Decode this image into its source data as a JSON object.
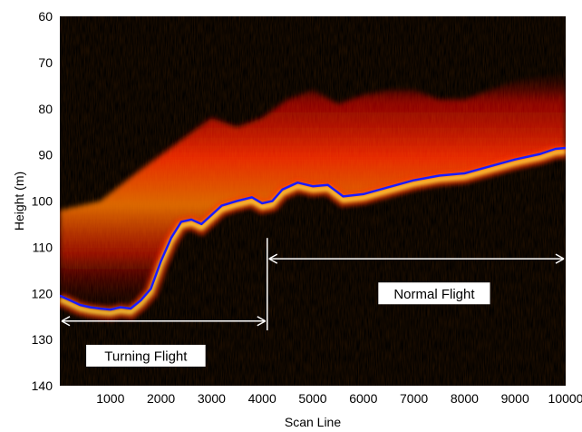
{
  "chart_data": {
    "type": "heatmap",
    "xlabel": "Scan Line",
    "ylabel": "Height (m)",
    "xlim": [
      0,
      10000
    ],
    "ylim": [
      60,
      140
    ],
    "y_inverted": true,
    "xticks": [
      1000,
      2000,
      3000,
      4000,
      5000,
      6000,
      7000,
      8000,
      9000,
      10000
    ],
    "yticks": [
      60,
      70,
      80,
      90,
      100,
      110,
      120,
      130,
      140
    ],
    "colormap": "hot",
    "colors": {
      "background": "#000000",
      "trace_line": "#1a1aff",
      "annotation": "#ffffff",
      "label_box": "#ffffff",
      "label_text": "#000000"
    },
    "series": [
      {
        "values": [
          {
            "x": 0,
            "y": 120.5
          },
          {
            "x": 200,
            "y": 121.5
          },
          {
            "x": 400,
            "y": 122.5
          },
          {
            "x": 600,
            "y": 123.0
          },
          {
            "x": 800,
            "y": 123.3
          },
          {
            "x": 1000,
            "y": 123.5
          },
          {
            "x": 1200,
            "y": 123.0
          },
          {
            "x": 1400,
            "y": 123.3
          },
          {
            "x": 1600,
            "y": 121.5
          },
          {
            "x": 1800,
            "y": 119.0
          },
          {
            "x": 2000,
            "y": 113.0
          },
          {
            "x": 2200,
            "y": 108.0
          },
          {
            "x": 2400,
            "y": 104.5
          },
          {
            "x": 2600,
            "y": 104.0
          },
          {
            "x": 2800,
            "y": 105.0
          },
          {
            "x": 3000,
            "y": 103.0
          },
          {
            "x": 3200,
            "y": 101.0
          },
          {
            "x": 3500,
            "y": 100.0
          },
          {
            "x": 3800,
            "y": 99.2
          },
          {
            "x": 4000,
            "y": 100.5
          },
          {
            "x": 4200,
            "y": 100.0
          },
          {
            "x": 4400,
            "y": 97.5
          },
          {
            "x": 4700,
            "y": 96.0
          },
          {
            "x": 5000,
            "y": 96.8
          },
          {
            "x": 5300,
            "y": 96.5
          },
          {
            "x": 5600,
            "y": 99.0
          },
          {
            "x": 6000,
            "y": 98.5
          },
          {
            "x": 6500,
            "y": 97.0
          },
          {
            "x": 7000,
            "y": 95.5
          },
          {
            "x": 7500,
            "y": 94.5
          },
          {
            "x": 8000,
            "y": 94.0
          },
          {
            "x": 8500,
            "y": 92.5
          },
          {
            "x": 9000,
            "y": 91.0
          },
          {
            "x": 9500,
            "y": 89.8
          },
          {
            "x": 9800,
            "y": 88.7
          },
          {
            "x": 10000,
            "y": 88.5
          }
        ]
      }
    ],
    "clutter_band_top": [
      {
        "x": 0,
        "y": 102
      },
      {
        "x": 800,
        "y": 100
      },
      {
        "x": 1500,
        "y": 94
      },
      {
        "x": 2000,
        "y": 90
      },
      {
        "x": 2500,
        "y": 86
      },
      {
        "x": 3000,
        "y": 82
      },
      {
        "x": 3500,
        "y": 84
      },
      {
        "x": 4000,
        "y": 82
      },
      {
        "x": 4500,
        "y": 78
      },
      {
        "x": 5000,
        "y": 76
      },
      {
        "x": 5500,
        "y": 79
      },
      {
        "x": 6000,
        "y": 77
      },
      {
        "x": 6500,
        "y": 76
      },
      {
        "x": 7000,
        "y": 76
      },
      {
        "x": 7500,
        "y": 78
      },
      {
        "x": 8000,
        "y": 78
      },
      {
        "x": 8500,
        "y": 76
      },
      {
        "x": 9000,
        "y": 74
      },
      {
        "x": 9500,
        "y": 73
      },
      {
        "x": 10000,
        "y": 72
      }
    ],
    "annotations": [
      {
        "label": "Turning Flight",
        "x_start": 0,
        "x_end": 4100,
        "y": 126,
        "label_x": 1700,
        "label_y": 133.5
      },
      {
        "label": "Normal Flight",
        "x_start": 4100,
        "x_end": 10000,
        "y": 112.5,
        "label_x": 7400,
        "label_y": 120
      }
    ],
    "divider_x": 4100,
    "divider_y_range": [
      108,
      128
    ]
  }
}
